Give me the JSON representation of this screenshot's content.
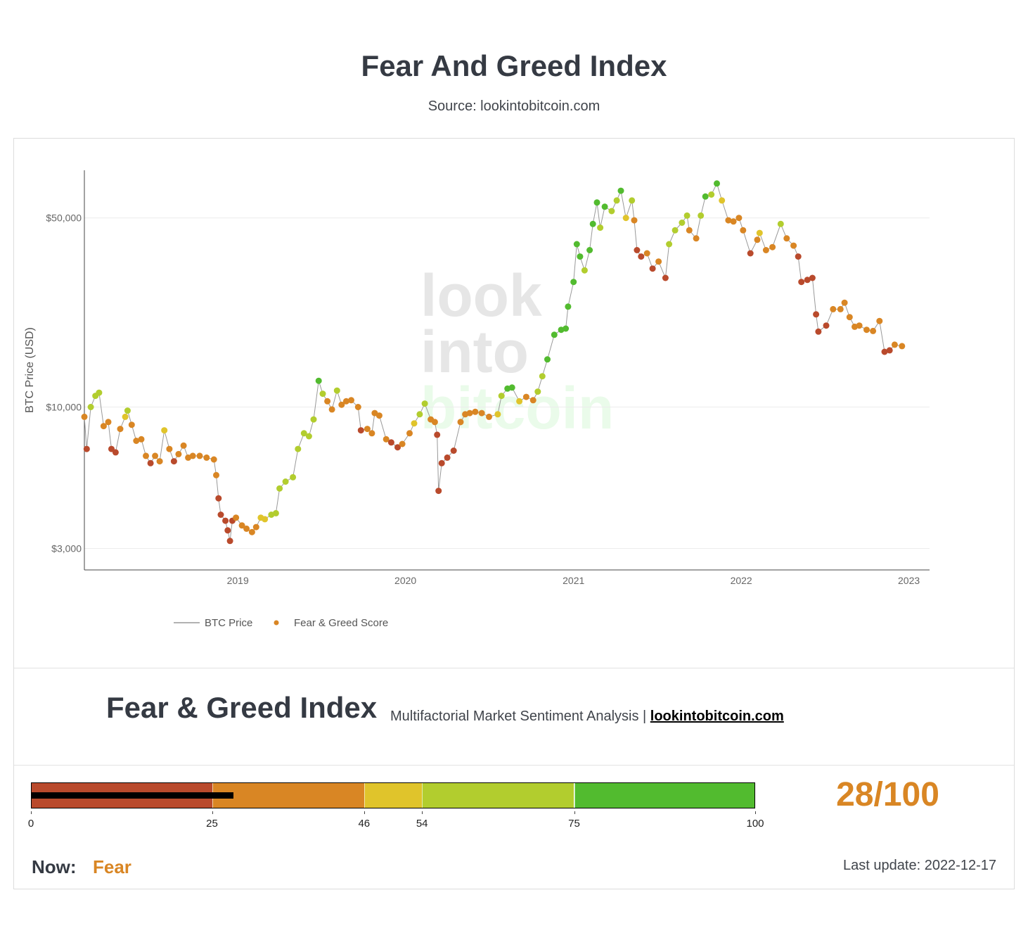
{
  "header": {
    "title": "Fear And Greed Index",
    "source": "Source: lookintobitcoin.com"
  },
  "watermark": {
    "line1": "look",
    "line2": "into",
    "line3": "bitcoin"
  },
  "colors": {
    "extreme_fear": "#b94a2c",
    "fear": "#d98624",
    "neutral": "#e0c42b",
    "greed": "#b2cd2e",
    "extreme_greed": "#52bb2f",
    "price_line": "#999999"
  },
  "chart_data": {
    "type": "scatter",
    "ylabel": "BTC Price (USD)",
    "yscale": "log",
    "ylim": [
      2500,
      75000
    ],
    "xlim": [
      "2018-02-01",
      "2023-02-15"
    ],
    "y_ticks": [
      {
        "value": 3000,
        "label": "$3,000"
      },
      {
        "value": 10000,
        "label": "$10,000"
      },
      {
        "value": 50000,
        "label": "$50,000"
      }
    ],
    "x_ticks": [
      {
        "value": "2019-01-01",
        "label": "2019"
      },
      {
        "value": "2020-01-01",
        "label": "2020"
      },
      {
        "value": "2021-01-01",
        "label": "2021"
      },
      {
        "value": "2022-01-01",
        "label": "2022"
      },
      {
        "value": "2023-01-01",
        "label": "2023"
      }
    ],
    "legend": {
      "placement": "bottom-left",
      "items": [
        {
          "name": "BTC Price",
          "kind": "line"
        },
        {
          "name": "Fear & Greed Score",
          "kind": "marker"
        }
      ]
    },
    "series": [
      {
        "name": "BTC Price",
        "points": [
          [
            "2018-02-01",
            9200,
            40
          ],
          [
            "2018-02-06",
            7000,
            15
          ],
          [
            "2018-02-15",
            10000,
            55
          ],
          [
            "2018-02-25",
            11000,
            60
          ],
          [
            "2018-03-05",
            11300,
            60
          ],
          [
            "2018-03-15",
            8500,
            40
          ],
          [
            "2018-03-25",
            8800,
            38
          ],
          [
            "2018-04-01",
            7000,
            22
          ],
          [
            "2018-04-10",
            6800,
            20
          ],
          [
            "2018-04-20",
            8300,
            42
          ],
          [
            "2018-05-01",
            9200,
            50
          ],
          [
            "2018-05-06",
            9700,
            55
          ],
          [
            "2018-05-15",
            8600,
            40
          ],
          [
            "2018-05-25",
            7500,
            35
          ],
          [
            "2018-06-05",
            7600,
            32
          ],
          [
            "2018-06-15",
            6600,
            28
          ],
          [
            "2018-06-25",
            6200,
            20
          ],
          [
            "2018-07-05",
            6600,
            28
          ],
          [
            "2018-07-15",
            6300,
            30
          ],
          [
            "2018-07-25",
            8200,
            50
          ],
          [
            "2018-08-05",
            7000,
            35
          ],
          [
            "2018-08-15",
            6300,
            22
          ],
          [
            "2018-08-25",
            6700,
            30
          ],
          [
            "2018-09-05",
            7200,
            38
          ],
          [
            "2018-09-15",
            6500,
            30
          ],
          [
            "2018-09-25",
            6600,
            32
          ],
          [
            "2018-10-10",
            6600,
            33
          ],
          [
            "2018-10-25",
            6500,
            35
          ],
          [
            "2018-11-10",
            6400,
            45
          ],
          [
            "2018-11-15",
            5600,
            25
          ],
          [
            "2018-11-20",
            4600,
            18
          ],
          [
            "2018-11-25",
            4000,
            16
          ],
          [
            "2018-12-05",
            3800,
            14
          ],
          [
            "2018-12-10",
            3500,
            10
          ],
          [
            "2018-12-15",
            3200,
            8
          ],
          [
            "2018-12-20",
            3800,
            18
          ],
          [
            "2018-12-28",
            3900,
            28
          ],
          [
            "2019-01-10",
            3650,
            30
          ],
          [
            "2019-01-20",
            3550,
            32
          ],
          [
            "2019-02-01",
            3450,
            35
          ],
          [
            "2019-02-10",
            3600,
            40
          ],
          [
            "2019-02-20",
            3900,
            48
          ],
          [
            "2019-03-01",
            3850,
            50
          ],
          [
            "2019-03-15",
            4000,
            55
          ],
          [
            "2019-03-25",
            4050,
            55
          ],
          [
            "2019-04-02",
            5000,
            62
          ],
          [
            "2019-04-15",
            5300,
            60
          ],
          [
            "2019-05-01",
            5500,
            62
          ],
          [
            "2019-05-12",
            7000,
            68
          ],
          [
            "2019-05-25",
            8000,
            70
          ],
          [
            "2019-06-05",
            7800,
            62
          ],
          [
            "2019-06-15",
            9000,
            70
          ],
          [
            "2019-06-26",
            12500,
            80
          ],
          [
            "2019-07-05",
            11200,
            62
          ],
          [
            "2019-07-15",
            10500,
            45
          ],
          [
            "2019-07-25",
            9800,
            38
          ],
          [
            "2019-08-05",
            11500,
            55
          ],
          [
            "2019-08-15",
            10200,
            40
          ],
          [
            "2019-08-25",
            10500,
            42
          ],
          [
            "2019-09-05",
            10600,
            44
          ],
          [
            "2019-09-20",
            10000,
            38
          ],
          [
            "2019-09-26",
            8200,
            22
          ],
          [
            "2019-10-10",
            8300,
            28
          ],
          [
            "2019-10-20",
            8000,
            26
          ],
          [
            "2019-10-26",
            9500,
            45
          ],
          [
            "2019-11-05",
            9300,
            45
          ],
          [
            "2019-11-20",
            7600,
            25
          ],
          [
            "2019-12-01",
            7400,
            22
          ],
          [
            "2019-12-15",
            7100,
            20
          ],
          [
            "2019-12-25",
            7300,
            28
          ],
          [
            "2020-01-10",
            8000,
            40
          ],
          [
            "2020-01-20",
            8700,
            52
          ],
          [
            "2020-02-01",
            9400,
            55
          ],
          [
            "2020-02-12",
            10300,
            60
          ],
          [
            "2020-02-25",
            9000,
            40
          ],
          [
            "2020-03-05",
            8800,
            38
          ],
          [
            "2020-03-10",
            7900,
            22
          ],
          [
            "2020-03-13",
            4900,
            8
          ],
          [
            "2020-03-20",
            6200,
            12
          ],
          [
            "2020-04-01",
            6500,
            14
          ],
          [
            "2020-04-15",
            6900,
            18
          ],
          [
            "2020-04-30",
            8800,
            40
          ],
          [
            "2020-05-10",
            9400,
            42
          ],
          [
            "2020-05-20",
            9500,
            40
          ],
          [
            "2020-06-01",
            9600,
            45
          ],
          [
            "2020-06-15",
            9500,
            42
          ],
          [
            "2020-07-01",
            9200,
            42
          ],
          [
            "2020-07-20",
            9400,
            46
          ],
          [
            "2020-07-28",
            11000,
            72
          ],
          [
            "2020-08-10",
            11700,
            76
          ],
          [
            "2020-08-20",
            11800,
            75
          ],
          [
            "2020-09-05",
            10500,
            48
          ],
          [
            "2020-09-20",
            10900,
            44
          ],
          [
            "2020-10-05",
            10600,
            45
          ],
          [
            "2020-10-15",
            11400,
            55
          ],
          [
            "2020-10-25",
            13000,
            70
          ],
          [
            "2020-11-05",
            15000,
            78
          ],
          [
            "2020-11-20",
            18500,
            88
          ],
          [
            "2020-12-05",
            19300,
            88
          ],
          [
            "2020-12-15",
            19500,
            86
          ],
          [
            "2020-12-20",
            23500,
            92
          ],
          [
            "2021-01-01",
            29000,
            92
          ],
          [
            "2021-01-08",
            40000,
            95
          ],
          [
            "2021-01-15",
            36000,
            78
          ],
          [
            "2021-01-25",
            32000,
            72
          ],
          [
            "2021-02-05",
            38000,
            80
          ],
          [
            "2021-02-12",
            47500,
            88
          ],
          [
            "2021-02-21",
            57000,
            92
          ],
          [
            "2021-02-28",
            46000,
            70
          ],
          [
            "2021-03-10",
            55000,
            75
          ],
          [
            "2021-03-25",
            53000,
            66
          ],
          [
            "2021-04-05",
            58000,
            72
          ],
          [
            "2021-04-14",
            63000,
            78
          ],
          [
            "2021-04-25",
            50000,
            52
          ],
          [
            "2021-05-08",
            58000,
            65
          ],
          [
            "2021-05-13",
            49000,
            40
          ],
          [
            "2021-05-19",
            38000,
            20
          ],
          [
            "2021-05-28",
            36000,
            22
          ],
          [
            "2021-06-10",
            37000,
            25
          ],
          [
            "2021-06-22",
            32500,
            18
          ],
          [
            "2021-07-05",
            34500,
            25
          ],
          [
            "2021-07-20",
            30000,
            20
          ],
          [
            "2021-07-28",
            40000,
            55
          ],
          [
            "2021-08-10",
            45000,
            68
          ],
          [
            "2021-08-25",
            48000,
            72
          ],
          [
            "2021-09-05",
            51000,
            72
          ],
          [
            "2021-09-10",
            45000,
            45
          ],
          [
            "2021-09-25",
            42000,
            30
          ],
          [
            "2021-10-05",
            51000,
            62
          ],
          [
            "2021-10-15",
            60000,
            76
          ],
          [
            "2021-10-28",
            61000,
            72
          ],
          [
            "2021-11-09",
            67000,
            80
          ],
          [
            "2021-11-20",
            58000,
            50
          ],
          [
            "2021-12-04",
            49000,
            30
          ],
          [
            "2021-12-15",
            48500,
            30
          ],
          [
            "2021-12-27",
            50000,
            40
          ],
          [
            "2022-01-05",
            45000,
            25
          ],
          [
            "2022-01-21",
            37000,
            15
          ],
          [
            "2022-02-05",
            41500,
            38
          ],
          [
            "2022-02-10",
            44000,
            48
          ],
          [
            "2022-02-24",
            38000,
            25
          ],
          [
            "2022-03-10",
            39000,
            26
          ],
          [
            "2022-03-28",
            47500,
            58
          ],
          [
            "2022-04-10",
            42000,
            32
          ],
          [
            "2022-04-25",
            39500,
            26
          ],
          [
            "2022-05-05",
            36000,
            22
          ],
          [
            "2022-05-12",
            29000,
            12
          ],
          [
            "2022-05-25",
            29500,
            12
          ],
          [
            "2022-06-05",
            30000,
            14
          ],
          [
            "2022-06-13",
            22000,
            10
          ],
          [
            "2022-06-18",
            19000,
            8
          ],
          [
            "2022-07-05",
            20000,
            12
          ],
          [
            "2022-07-20",
            23000,
            28
          ],
          [
            "2022-08-05",
            23000,
            35
          ],
          [
            "2022-08-14",
            24300,
            40
          ],
          [
            "2022-08-25",
            21500,
            28
          ],
          [
            "2022-09-05",
            19800,
            28
          ],
          [
            "2022-09-15",
            20000,
            30
          ],
          [
            "2022-10-01",
            19300,
            28
          ],
          [
            "2022-10-15",
            19100,
            28
          ],
          [
            "2022-10-29",
            20800,
            45
          ],
          [
            "2022-11-09",
            16000,
            20
          ],
          [
            "2022-11-20",
            16200,
            24
          ],
          [
            "2022-12-01",
            17000,
            28
          ],
          [
            "2022-12-17",
            16800,
            28
          ]
        ]
      }
    ]
  },
  "index_panel": {
    "title": "Fear & Greed Index",
    "tagline": "Multifactorial Market Sentiment Analysis |",
    "link_text": "lookintobitcoin.com",
    "score": 28,
    "score_label": "28/100",
    "scale_max": 100,
    "gauge_segments": [
      {
        "from": 0,
        "to": 25,
        "color": "#b94a2c"
      },
      {
        "from": 25,
        "to": 46,
        "color": "#d98624"
      },
      {
        "from": 46,
        "to": 54,
        "color": "#e0c42b"
      },
      {
        "from": 54,
        "to": 75,
        "color": "#b2cd2e"
      },
      {
        "from": 75,
        "to": 100,
        "color": "#52bb2f"
      }
    ],
    "gauge_ticks": [
      {
        "value": 0,
        "label": "0"
      },
      {
        "value": 25,
        "label": "25"
      },
      {
        "value": 46,
        "label": "46"
      },
      {
        "value": 54,
        "label": "54"
      },
      {
        "value": 75,
        "label": "75"
      },
      {
        "value": 100,
        "label": "100"
      }
    ],
    "now_label": "Now:",
    "now_value": "Fear",
    "last_update": "Last update: 2022-12-17"
  }
}
